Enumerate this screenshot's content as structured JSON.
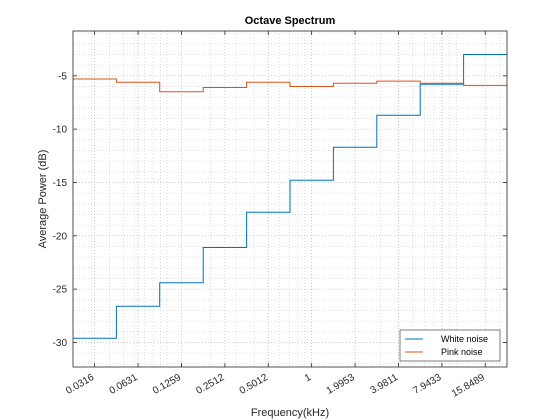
{
  "chart_data": {
    "type": "line",
    "title": "Octave Spectrum",
    "xlabel": "Frequency(kHz)",
    "ylabel": "Average Power (dB)",
    "x_scale": "log",
    "x_tick_labels": [
      "0.0316",
      "0.0631",
      "0.1259",
      "0.2512",
      "0.5012",
      "1",
      "1.9953",
      "3.9811",
      "7.9433",
      "15.8489"
    ],
    "x_tick_values": [
      0.0316,
      0.0631,
      0.1259,
      0.2512,
      0.5012,
      1,
      1.9953,
      3.9811,
      7.9433,
      15.8489
    ],
    "xlim": [
      0.0224,
      22.4
    ],
    "y_ticks": [
      -30,
      -25,
      -20,
      -15,
      -10,
      -5
    ],
    "ylim": [
      -32.3,
      -0.8
    ],
    "grid": "on, with minor grid",
    "legend_location": "bottom-right",
    "series": [
      {
        "name": "White noise",
        "color": "#0072BD",
        "style": "stairs",
        "band_edges": [
          0.0224,
          0.0447,
          0.0891,
          0.1778,
          0.3548,
          0.7079,
          1.4125,
          2.8184,
          5.6234,
          11.2202,
          22.4
        ],
        "values": [
          -29.6,
          -26.6,
          -24.4,
          -21.1,
          -17.8,
          -14.8,
          -11.7,
          -8.7,
          -5.8,
          -3.0
        ]
      },
      {
        "name": "Pink noise",
        "color": "#D95319",
        "style": "stairs",
        "band_edges": [
          0.0224,
          0.0447,
          0.0891,
          0.1778,
          0.3548,
          0.7079,
          1.4125,
          2.8184,
          5.6234,
          11.2202,
          22.4
        ],
        "values": [
          -5.3,
          -5.6,
          -6.5,
          -6.1,
          -5.6,
          -6.0,
          -5.7,
          -5.5,
          -5.7,
          -5.9
        ]
      }
    ]
  }
}
